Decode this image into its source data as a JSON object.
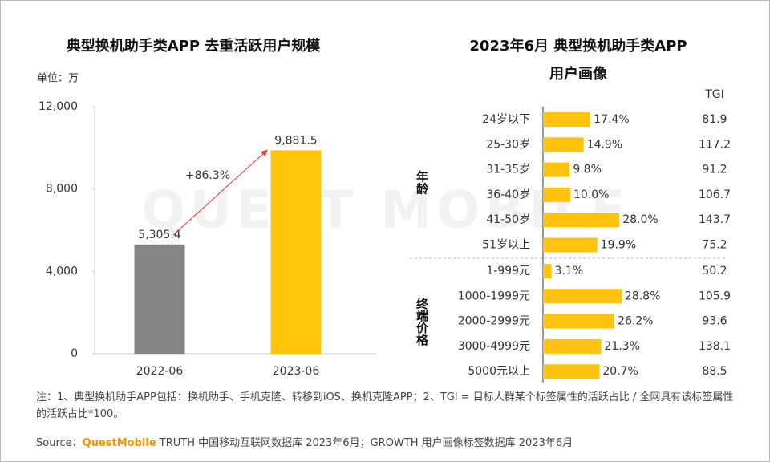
{
  "chart_data": [
    {
      "type": "bar",
      "title": "典型换机助手类APP 去重活跃用户规模",
      "unit": "单位：万",
      "categories": [
        "2022-06",
        "2023-06"
      ],
      "values": [
        5305.4,
        9881.5
      ],
      "value_labels": [
        "5,305.4",
        "9,881.5"
      ],
      "colors": [
        "#858585",
        "#ffc50a"
      ],
      "ylim": [
        0,
        12000
      ],
      "yticks": [
        0,
        {
          "value": 4000,
          "label": "4,000"
        },
        {
          "value": 8000,
          "label": "8,000"
        },
        {
          "value": 12000,
          "label": "12,000"
        }
      ],
      "annotation": "+86.3%",
      "annotation_color": "#e53935"
    },
    {
      "type": "hbar",
      "title_lines": [
        "2023年6月 典型换机助手类APP",
        "用户画像"
      ],
      "color": "#ffc20e",
      "tgi_header": "TGI",
      "groups": [
        {
          "label": "年龄",
          "categories": [
            "24岁以下",
            "25-30岁",
            "31-35岁",
            "36-40岁",
            "41-50岁",
            "51岁以上"
          ],
          "values": [
            17.4,
            14.9,
            9.8,
            10.0,
            28.0,
            19.9
          ],
          "value_labels": [
            "17.4%",
            "14.9%",
            "9.8%",
            "10.0%",
            "28.0%",
            "19.9%"
          ],
          "tgi": [
            81.9,
            117.2,
            91.2,
            106.7,
            143.7,
            75.2
          ],
          "tgi_colors": [
            "#333333",
            "#e53935",
            "#333333",
            "#e53935",
            "#e53935",
            "#333333"
          ]
        },
        {
          "label": "终端价格",
          "categories": [
            "1-999元",
            "1000-1999元",
            "2000-2999元",
            "3000-4999元",
            "5000元以上"
          ],
          "values": [
            3.1,
            28.8,
            26.2,
            21.3,
            20.7
          ],
          "value_labels": [
            "3.1%",
            "28.8%",
            "26.2%",
            "21.3%",
            "20.7%"
          ],
          "tgi": [
            50.2,
            105.9,
            93.6,
            138.1,
            88.5
          ],
          "tgi_colors": [
            "#333333",
            "#e53935",
            "#333333",
            "#e53935",
            "#333333"
          ]
        }
      ]
    }
  ],
  "watermark": "QUEST MOBILE",
  "note": "注：1、典型换机助手APP包括：换机助手、手机克隆、转移到iOS、换机克隆APP；2、TGI = 目标人群某个标签属性的活跃占比 / 全网具有该标签属性的活跃占比*100。",
  "source": {
    "label": "Source：",
    "brand": "QuestMobile",
    "text": " TRUTH 中国移动互联网数据库 2023年6月；GROWTH 用户画像标签数据库 2023年6月"
  }
}
